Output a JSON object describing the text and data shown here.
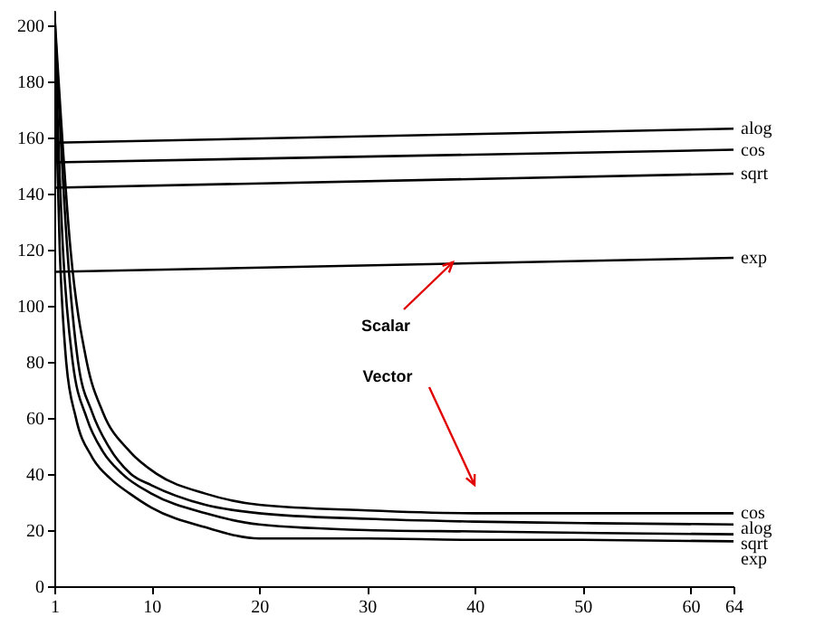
{
  "chart_data": {
    "type": "line",
    "xlim": [
      1,
      64
    ],
    "ylim": [
      0,
      205
    ],
    "xticks": [
      1,
      10,
      20,
      30,
      40,
      50,
      60,
      64
    ],
    "yticks": [
      0,
      20,
      40,
      60,
      80,
      100,
      120,
      140,
      160,
      180,
      200
    ],
    "grid": false,
    "line_style": "solid",
    "series": [
      {
        "name": "alog",
        "color": "#000000",
        "x": [
          1,
          64
        ],
        "values": [
          158,
          163
        ]
      },
      {
        "name": "cos",
        "color": "#000000",
        "x": [
          1,
          64
        ],
        "values": [
          151,
          155.5
        ]
      },
      {
        "name": "sqrt",
        "color": "#000000",
        "x": [
          1,
          64
        ],
        "values": [
          142,
          147
        ]
      },
      {
        "name": "exp",
        "color": "#000000",
        "x": [
          1,
          64
        ],
        "values": [
          112,
          117
        ]
      },
      {
        "name": "cos",
        "color": "#000000",
        "x": [
          1,
          2.5,
          4,
          5.5,
          8,
          10.5,
          15,
          20,
          30,
          40,
          50,
          64
        ],
        "values": [
          205,
          120,
          80,
          62,
          48,
          40,
          33,
          29,
          27,
          26,
          26,
          26
        ]
      },
      {
        "name": "alog",
        "color": "#000000",
        "x": [
          1,
          2.2,
          3.2,
          4.5,
          6,
          8.1,
          10,
          15,
          20,
          30,
          40,
          50,
          64
        ],
        "values": [
          205,
          120,
          80,
          62,
          50,
          40,
          36,
          29,
          26,
          24,
          23,
          22.5,
          22
        ]
      },
      {
        "name": "sqrt",
        "color": "#000000",
        "x": [
          1,
          1.8,
          2.7,
          4,
          5.5,
          7.3,
          10,
          15,
          20,
          30,
          40,
          50,
          64
        ],
        "values": [
          200,
          120,
          80,
          60,
          48,
          40,
          33,
          26,
          22,
          20,
          19.5,
          19,
          18.5
        ]
      },
      {
        "name": "exp",
        "color": "#000000",
        "x": [
          1,
          1.5,
          2.1,
          3,
          4.5,
          6.3,
          8,
          10,
          15,
          20,
          30,
          40,
          50,
          64
        ],
        "values": [
          190,
          120,
          80,
          60,
          46,
          38,
          33,
          28,
          21,
          17,
          17,
          16.5,
          16.5,
          16
        ]
      }
    ],
    "annotations": [
      "Scalar",
      "Vector"
    ]
  }
}
